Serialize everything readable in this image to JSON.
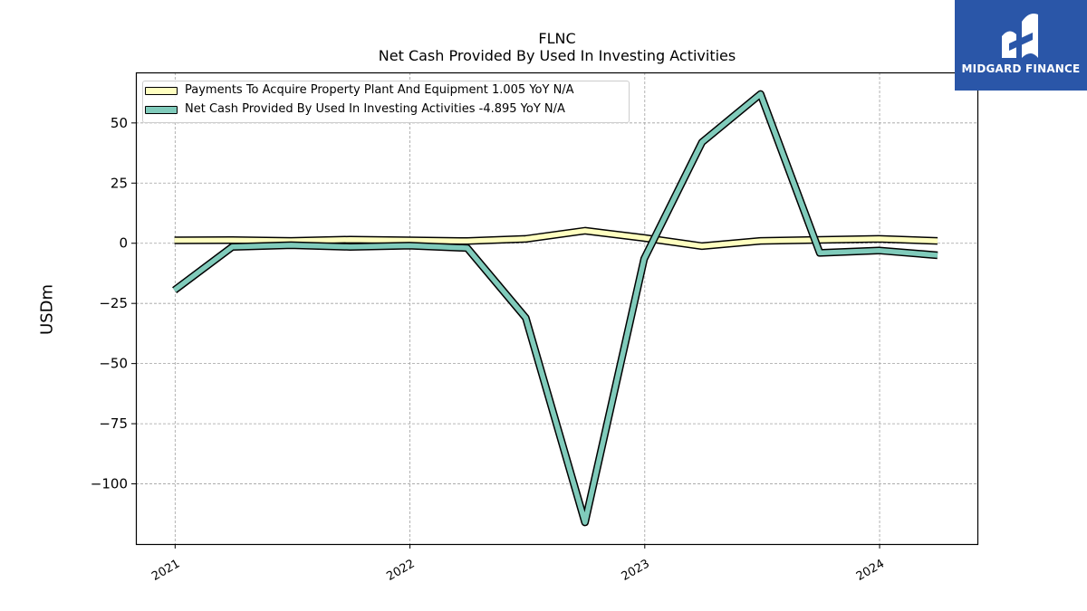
{
  "header": {
    "title": "FLNC",
    "subtitle": "Net Cash Provided By Used In Investing Activities"
  },
  "logo": {
    "text": "MIDGARD FINANCE",
    "background": "#2a56a8"
  },
  "chart_data": {
    "type": "line",
    "title": "FLNC",
    "subtitle": "Net Cash Provided By Used In Investing Activities",
    "xlabel": "",
    "ylabel": "USDm",
    "x": [
      "2020-12-31",
      "2021-03-31",
      "2021-06-30",
      "2021-09-30",
      "2021-12-31",
      "2022-03-31",
      "2022-06-30",
      "2022-09-30",
      "2022-12-31",
      "2023-03-31",
      "2023-06-30",
      "2023-09-30",
      "2023-12-31",
      "2024-03-31"
    ],
    "xticks": [
      "2021",
      "2022",
      "2023",
      "2024"
    ],
    "xlim": [
      "2020-11-01",
      "2024-06-01"
    ],
    "ylim": [
      -125,
      71
    ],
    "yticks": [
      50,
      25,
      0,
      -25,
      -50,
      -75,
      -100
    ],
    "ytick_labels": [
      "50",
      "25",
      "0",
      "−25",
      "−50",
      "−75",
      "−100"
    ],
    "grid": true,
    "legend_position": "top-left",
    "series": [
      {
        "name": "Payments To Acquire Property Plant And Equipment",
        "legend_label": "Payments To Acquire Property Plant And Equipment  1.005 YoY N/A",
        "color": "#ffffc0",
        "values": [
          1.2,
          1.3,
          1.0,
          1.5,
          1.2,
          0.9,
          1.8,
          5.2,
          2.2,
          -1.2,
          1.0,
          1.4,
          1.8,
          1.0
        ]
      },
      {
        "name": "Net Cash Provided By Used In Investing Activities",
        "legend_label": "Net Cash Provided By Used In Investing Activities  -4.895 YoY N/A",
        "color": "#80cbbb",
        "values": [
          -19.5,
          -1.5,
          -0.8,
          -1.5,
          -1.0,
          -2.0,
          -31.0,
          -116.0,
          -6.5,
          42.0,
          62.0,
          -4.0,
          -3.0,
          -5.0
        ]
      }
    ]
  }
}
